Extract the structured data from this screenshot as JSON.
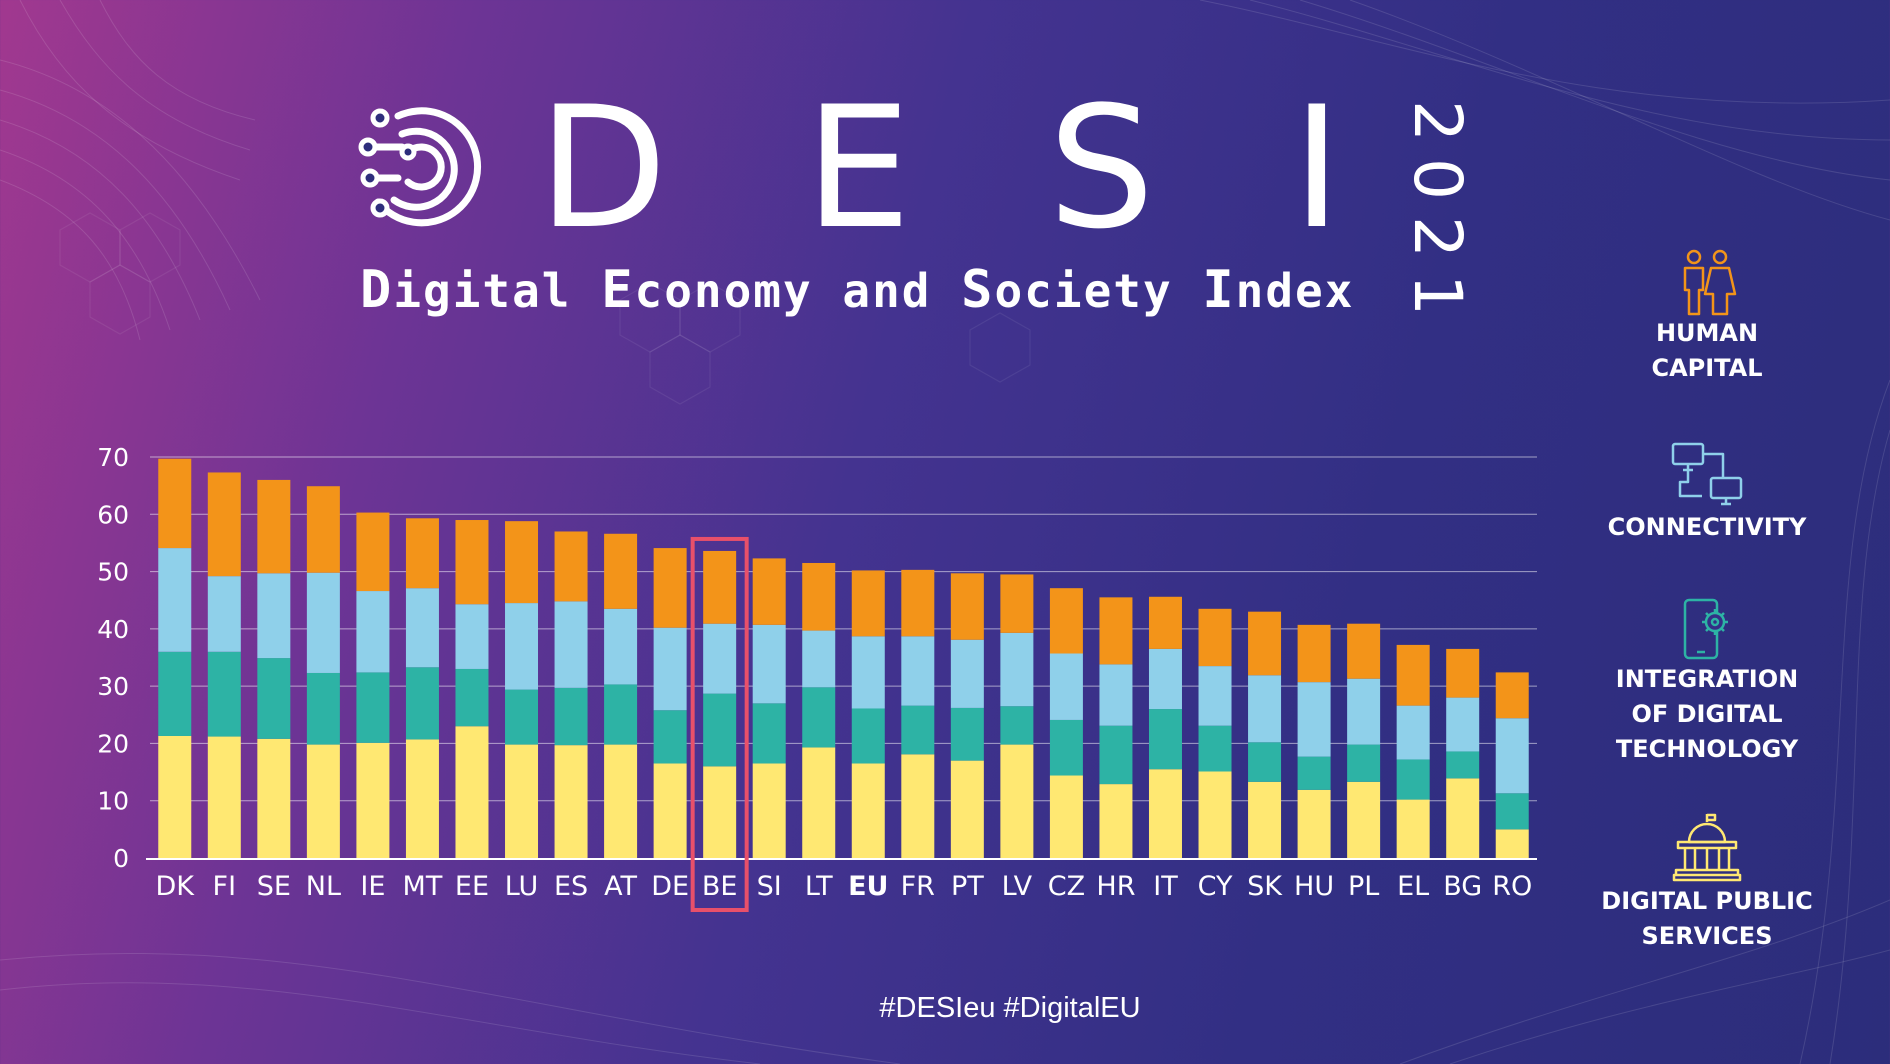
{
  "header": {
    "brand_letters": [
      "D",
      "E",
      "S",
      "I"
    ],
    "year": "2021",
    "subtitle_words": [
      {
        "cap": "D",
        "rest": "igital"
      },
      {
        "cap": "E",
        "rest": "conomy"
      },
      {
        "cap": "",
        "rest": "and"
      },
      {
        "cap": "S",
        "rest": "ociety"
      },
      {
        "cap": "I",
        "rest": "ndex"
      }
    ]
  },
  "legend": [
    {
      "label": "HUMAN\nCAPITAL",
      "icon": "people-icon",
      "color": "#f39419"
    },
    {
      "label": "CONNECTIVITY",
      "icon": "network-computers-icon",
      "color": "#8fd0ea"
    },
    {
      "label": "INTEGRATION\nOF DIGITAL\nTECHNOLOGY",
      "icon": "smartphone-gear-icon",
      "color": "#2db3a5"
    },
    {
      "label": "DIGITAL PUBLIC\nSERVICES",
      "icon": "government-building-icon",
      "color": "#ffe872"
    }
  ],
  "footer": {
    "hashtags": "#DESIeu  #DigitalEU"
  },
  "chart_data": {
    "type": "bar",
    "stacked": true,
    "ylim": [
      0,
      70
    ],
    "yticks": [
      0,
      10,
      20,
      30,
      40,
      50,
      60,
      70
    ],
    "grid": true,
    "highlight_category": "BE",
    "bold_category": "EU",
    "categories": [
      "DK",
      "FI",
      "SE",
      "NL",
      "IE",
      "MT",
      "EE",
      "LU",
      "ES",
      "AT",
      "DE",
      "BE",
      "SI",
      "LT",
      "EU",
      "FR",
      "PT",
      "LV",
      "CZ",
      "HR",
      "IT",
      "CY",
      "SK",
      "HU",
      "PL",
      "EL",
      "BG",
      "RO"
    ],
    "series": [
      {
        "color": "#ffe872",
        "values": [
          21.3,
          21.2,
          20.8,
          19.8,
          20.1,
          20.7,
          23.0,
          19.8,
          19.7,
          19.8,
          16.5,
          16.0,
          16.5,
          19.3,
          16.5,
          18.1,
          17.0,
          19.8,
          14.4,
          12.9,
          15.5,
          15.1,
          13.3,
          11.9,
          13.3,
          10.2,
          13.9,
          5.0
        ]
      },
      {
        "color": "#2db3a5",
        "values": [
          14.7,
          14.8,
          14.1,
          12.5,
          12.3,
          12.6,
          10.0,
          9.6,
          10.0,
          10.5,
          9.3,
          12.7,
          10.5,
          10.5,
          9.6,
          8.5,
          9.2,
          6.7,
          9.7,
          10.2,
          10.5,
          8.0,
          6.9,
          5.8,
          6.5,
          7.0,
          4.7,
          6.3
        ]
      },
      {
        "color": "#8fd0ea",
        "values": [
          18.1,
          13.2,
          14.8,
          17.5,
          14.2,
          13.8,
          11.3,
          15.1,
          15.1,
          13.2,
          14.4,
          12.2,
          13.7,
          9.9,
          12.6,
          12.1,
          11.9,
          12.8,
          11.6,
          10.7,
          10.5,
          10.4,
          11.7,
          13.0,
          11.5,
          9.4,
          9.4,
          13.1
        ]
      },
      {
        "color": "#f39419",
        "values": [
          15.6,
          18.1,
          16.3,
          15.1,
          13.7,
          12.2,
          14.7,
          14.3,
          12.2,
          13.1,
          13.9,
          12.7,
          11.6,
          11.8,
          11.5,
          11.6,
          11.6,
          10.2,
          11.4,
          11.7,
          9.1,
          10.0,
          11.1,
          10.0,
          9.6,
          10.6,
          8.5,
          8.0
        ]
      }
    ]
  }
}
